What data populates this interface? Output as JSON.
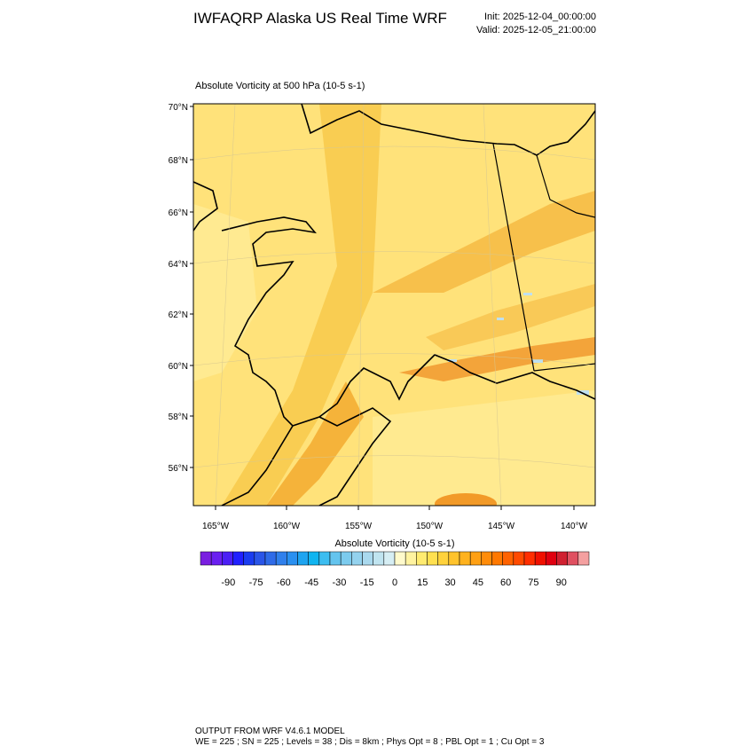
{
  "header": {
    "title": "IWFAQRP Alaska US Real Time WRF",
    "init": "Init: 2025-12-04_00:00:00",
    "valid": "Valid: 2025-12-05_21:00:00"
  },
  "map": {
    "title": "Absolute Vorticity at 500 hPa   (10-5 s-1)",
    "lat_labels": [
      "70°N",
      "68°N",
      "66°N",
      "64°N",
      "62°N",
      "60°N",
      "58°N",
      "56°N"
    ],
    "lon_labels": [
      "165°W",
      "160°W",
      "155°W",
      "150°W",
      "145°W",
      "140°W"
    ]
  },
  "colorbar": {
    "title": "Absolute Vorticity  (10-5 s-1)",
    "lim": [
      -105,
      105
    ],
    "ticks": [
      -90,
      -75,
      -60,
      -45,
      -30,
      -15,
      0,
      15,
      30,
      45,
      60,
      75,
      90
    ],
    "colors": [
      "#7a1fe0",
      "#6a1ff0",
      "#4b1ff5",
      "#2020ff",
      "#1a3cf0",
      "#2a55e8",
      "#2f6be8",
      "#3080ec",
      "#2a90f0",
      "#1ea4f0",
      "#10b4f0",
      "#3cbdf0",
      "#64c4ee",
      "#7ccbee",
      "#94d2ee",
      "#aad9ee",
      "#c0e4f0",
      "#d6eef4",
      "#fffacc",
      "#fff3a0",
      "#ffeb70",
      "#ffe050",
      "#ffd23c",
      "#ffc32c",
      "#ffb21e",
      "#ffa014",
      "#ff8c0a",
      "#ff7800",
      "#ff6200",
      "#ff4a00",
      "#ff2e00",
      "#f01000",
      "#e00010",
      "#d02030",
      "#e05060",
      "#f4a0a0"
    ]
  },
  "footer": {
    "line1": "OUTPUT FROM WRF V4.6.1 MODEL",
    "line2": "WE = 225 ; SN = 225 ; Levels = 38 ; Dis = 8km ; Phys Opt = 8 ; PBL Opt = 1 ; Cu Opt = 3"
  }
}
